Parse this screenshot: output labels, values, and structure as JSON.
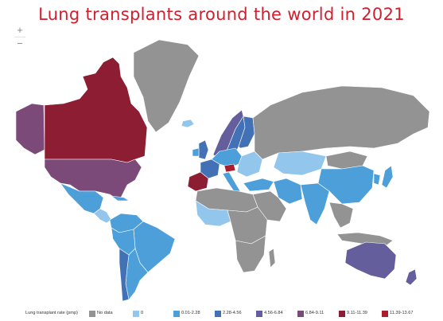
{
  "title": "Lung transplants around the world in 2021",
  "zoom": {
    "in_label": "+",
    "out_label": "−"
  },
  "legend": {
    "title": "Lung transplant rate (pmp)",
    "items": [
      {
        "label": "No data",
        "color": "#939393"
      },
      {
        "label": "0",
        "color": "#93c6ec"
      },
      {
        "label": "0.01-2.28",
        "color": "#4c9fd9"
      },
      {
        "label": "2.28-4.56",
        "color": "#4272b5"
      },
      {
        "label": "4.56-6.84",
        "color": "#645f9c"
      },
      {
        "label": "6.84-9.11",
        "color": "#7c4a79"
      },
      {
        "label": "9.11-11.39",
        "color": "#8c1d32"
      },
      {
        "label": "11.39-13.67",
        "color": "#a91d2c"
      }
    ]
  },
  "regions": [
    {
      "name": "canada",
      "color": "#8c1d32"
    },
    {
      "name": "alaska",
      "color": "#7c4a79"
    },
    {
      "name": "greenland",
      "color": "#939393"
    },
    {
      "name": "usa",
      "color": "#7c4a79"
    },
    {
      "name": "mexico",
      "color": "#4c9fd9"
    },
    {
      "name": "central-america",
      "color": "#93c6ec"
    },
    {
      "name": "cuba",
      "color": "#4c9fd9"
    },
    {
      "name": "iceland",
      "color": "#93c6ec"
    },
    {
      "name": "colombia-venezuela",
      "color": "#4c9fd9"
    },
    {
      "name": "brazil",
      "color": "#4c9fd9"
    },
    {
      "name": "peru-bolivia",
      "color": "#4c9fd9"
    },
    {
      "name": "argentina",
      "color": "#4c9fd9"
    },
    {
      "name": "chile",
      "color": "#4272b5"
    },
    {
      "name": "norway",
      "color": "#645f9c"
    },
    {
      "name": "sweden",
      "color": "#4272b5"
    },
    {
      "name": "finland",
      "color": "#4272b5"
    },
    {
      "name": "uk",
      "color": "#4272b5"
    },
    {
      "name": "ireland",
      "color": "#4c9fd9"
    },
    {
      "name": "spain-portugal",
      "color": "#8c1d32"
    },
    {
      "name": "france",
      "color": "#4272b5"
    },
    {
      "name": "central-europe",
      "color": "#4c9fd9"
    },
    {
      "name": "austria",
      "color": "#a91d2c"
    },
    {
      "name": "italy",
      "color": "#4c9fd9"
    },
    {
      "name": "eastern-europe",
      "color": "#93c6ec"
    },
    {
      "name": "russia",
      "color": "#939393"
    },
    {
      "name": "turkey",
      "color": "#4c9fd9"
    },
    {
      "name": "north-africa",
      "color": "#939393"
    },
    {
      "name": "west-africa",
      "color": "#93c6ec"
    },
    {
      "name": "central-africa",
      "color": "#939393"
    },
    {
      "name": "southern-africa",
      "color": "#939393"
    },
    {
      "name": "madagascar",
      "color": "#939393"
    },
    {
      "name": "arabia",
      "color": "#939393"
    },
    {
      "name": "iran",
      "color": "#4c9fd9"
    },
    {
      "name": "central-asia",
      "color": "#93c6ec"
    },
    {
      "name": "india",
      "color": "#4c9fd9"
    },
    {
      "name": "china",
      "color": "#4c9fd9"
    },
    {
      "name": "mongolia",
      "color": "#939393"
    },
    {
      "name": "korea",
      "color": "#4c9fd9"
    },
    {
      "name": "japan",
      "color": "#4c9fd9"
    },
    {
      "name": "southeast-asia",
      "color": "#939393"
    },
    {
      "name": "indonesia",
      "color": "#939393"
    },
    {
      "name": "australia",
      "color": "#645f9c"
    },
    {
      "name": "new-zealand",
      "color": "#645f9c"
    }
  ]
}
